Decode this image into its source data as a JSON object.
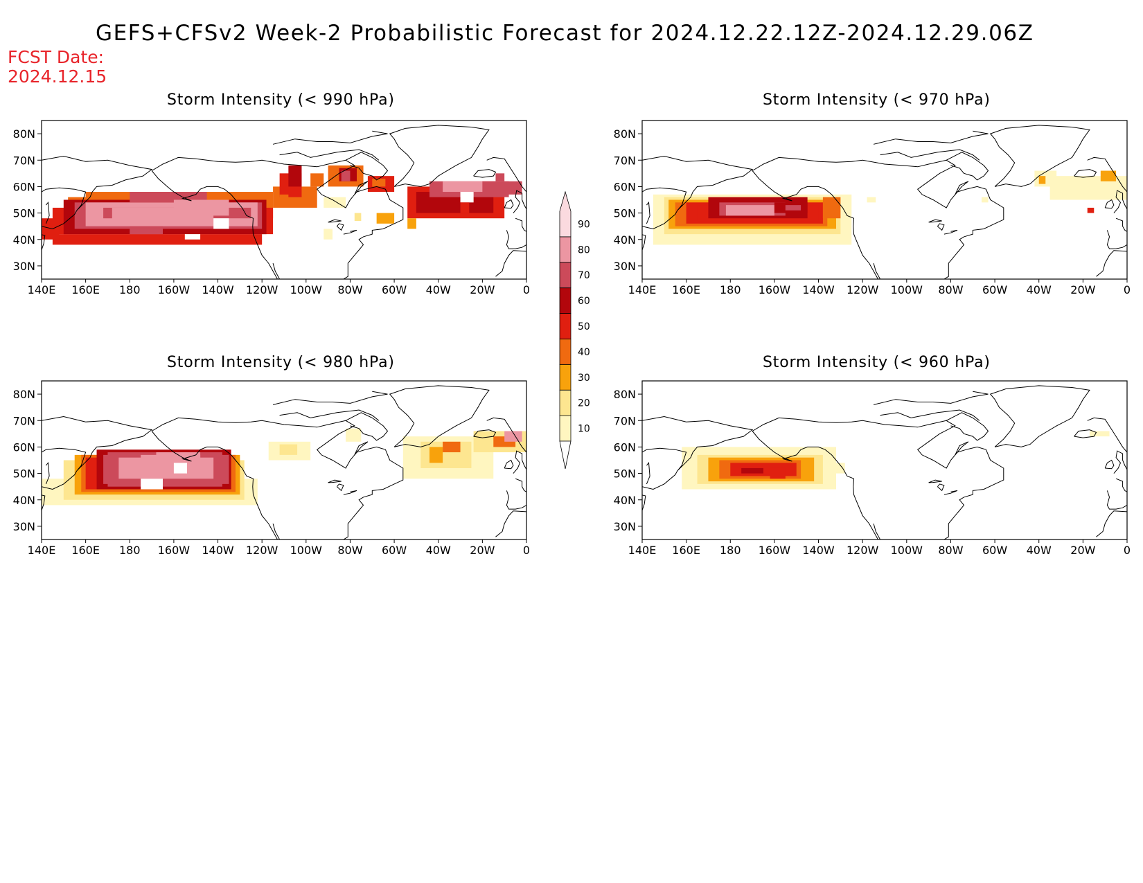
{
  "header": {
    "title": "GEFS+CFSv2 Week-2 Probabilistic Forecast for 2024.12.22.12Z-2024.12.29.06Z",
    "fcst_label": "FCST Date:",
    "fcst_date": "2024.12.15"
  },
  "axes": {
    "lat_labels": [
      "80N",
      "70N",
      "60N",
      "50N",
      "40N",
      "30N"
    ],
    "lon_labels": [
      "140E",
      "160E",
      "180",
      "160W",
      "140W",
      "120W",
      "100W",
      "80W",
      "60W",
      "40W",
      "20W",
      "0"
    ]
  },
  "panels": [
    {
      "id": "990",
      "title": "Storm Intensity (< 990 hPa)"
    },
    {
      "id": "970",
      "title": "Storm Intensity (< 970 hPa)"
    },
    {
      "id": "980",
      "title": "Storm Intensity (< 980 hPa)"
    },
    {
      "id": "960",
      "title": "Storm Intensity (< 960 hPa)"
    }
  ],
  "colorbar": {
    "levels": [
      "10",
      "20",
      "30",
      "40",
      "50",
      "60",
      "70",
      "80",
      "90"
    ],
    "colors": [
      "#fff6c0",
      "#fde690",
      "#f8a20c",
      "#f06a10",
      "#e01f10",
      "#b2060c",
      "#cc4a5a",
      "#ec96a2",
      "#fbdadf"
    ]
  },
  "map_styles": {
    "coastline_color": "#000000",
    "frame_color": "#000000"
  }
}
